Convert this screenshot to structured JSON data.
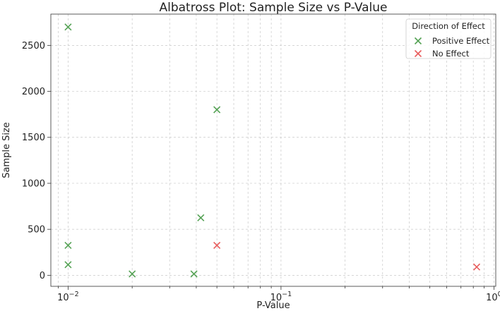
{
  "chart_data": {
    "type": "scatter",
    "title": "Albatross Plot: Sample Size vs P-Value",
    "xlabel": "P-Value",
    "ylabel": "Sample Size",
    "x_scale": "log",
    "xlim": [
      0.0083,
      1.02
    ],
    "ylim": [
      -120,
      2840
    ],
    "grid": true,
    "x_ticks": [
      {
        "value": 0.01,
        "base": "10",
        "exp": "−2"
      },
      {
        "value": 0.1,
        "base": "10",
        "exp": "−1"
      },
      {
        "value": 1,
        "base": "10",
        "exp": "0"
      }
    ],
    "y_ticks": [
      0,
      500,
      1000,
      1500,
      2000,
      2500
    ],
    "legend": {
      "title": "Direction of Effect",
      "position": "top-right"
    },
    "series": [
      {
        "name": "Positive Effect",
        "color": "#55a255",
        "marker": "x",
        "points": [
          {
            "x": 0.01,
            "y": 2700
          },
          {
            "x": 0.05,
            "y": 1800
          },
          {
            "x": 0.042,
            "y": 625
          },
          {
            "x": 0.01,
            "y": 325
          },
          {
            "x": 0.01,
            "y": 115
          },
          {
            "x": 0.02,
            "y": 15
          },
          {
            "x": 0.039,
            "y": 15
          }
        ]
      },
      {
        "name": "No Effect",
        "color": "#e85d5d",
        "marker": "x",
        "points": [
          {
            "x": 0.05,
            "y": 325
          },
          {
            "x": 0.83,
            "y": 90
          }
        ]
      }
    ]
  }
}
